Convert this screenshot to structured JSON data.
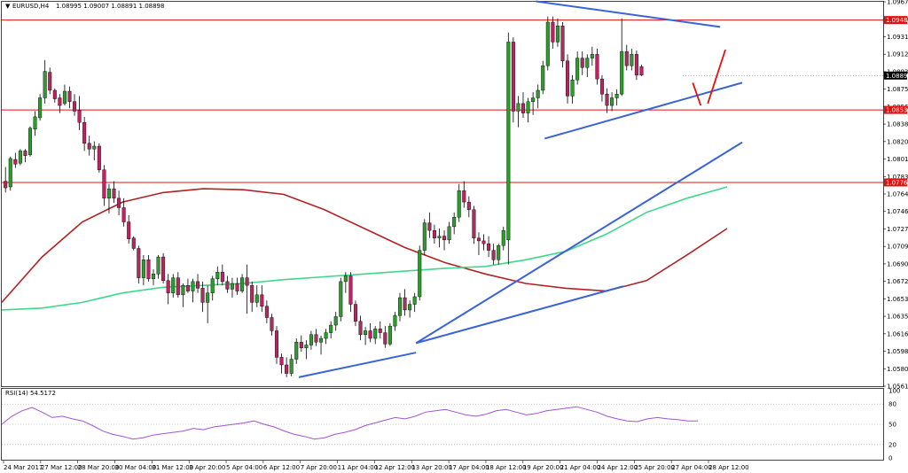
{
  "header": {
    "symbol": "EURUSD,H4",
    "ohlc": "1.08995 1.09007 1.08891 1.08898"
  },
  "rsi_header": "RSI(14) 54.5172",
  "colors": {
    "bull": "#2e9b2e",
    "bear": "#b8255f",
    "ma_red": "#b22222",
    "ma_green": "#3cd98a",
    "trend_blue": "#3a63d6",
    "level_red": "#e31010",
    "rsi_line": "#a352d6",
    "current_price_box": "#000000",
    "level_box": "#e31010"
  },
  "chart_data": [
    {
      "type": "candlestick",
      "panel": "price",
      "title": "EURUSD,H4",
      "ylim": [
        1.05615,
        1.09675
      ],
      "y_ticks": [
        "1.09675",
        "1.09500",
        "1.09310",
        "1.09120",
        "1.08935",
        "1.08750",
        "1.08565",
        "1.08380",
        "1.08200",
        "1.08015",
        "1.07830",
        "1.07645",
        "1.07460",
        "1.07275",
        "1.07090",
        "1.06905",
        "1.06720",
        "1.06535",
        "1.06350",
        "1.06165",
        "1.05985",
        "1.05800",
        "1.05615"
      ],
      "x_labels": [
        "24 Mar 2017",
        "27 Mar 12:00",
        "28 Mar 20:00",
        "30 Mar 04:00",
        "31 Mar 12:00",
        "3 Apr 20:00",
        "5 Apr 04:00",
        "6 Apr 12:00",
        "7 Apr 20:00",
        "11 Apr 04:00",
        "12 Apr 12:00",
        "13 Apr 20:00",
        "17 Apr 04:00",
        "18 Apr 12:00",
        "19 Apr 20:00",
        "21 Apr 04:00",
        "24 Apr 12:00",
        "25 Apr 20:00",
        "27 Apr 04:00",
        "28 Apr 12:00"
      ],
      "price_labels": {
        "current": "1.08896",
        "resistance": "1.09482",
        "support_1": "1.08533",
        "support_2": "1.07767"
      },
      "horizontal_levels": [
        1.09482,
        1.08533,
        1.07767
      ],
      "candles": [
        [
          1.0778,
          1.0793,
          1.0766,
          1.0771
        ],
        [
          1.0772,
          1.0804,
          1.0768,
          1.0802
        ],
        [
          1.0801,
          1.0808,
          1.0792,
          1.0796
        ],
        [
          1.0797,
          1.0812,
          1.0795,
          1.081
        ],
        [
          1.081,
          1.0812,
          1.0798,
          1.0805
        ],
        [
          1.0806,
          1.0836,
          1.0804,
          1.0834
        ],
        [
          1.0833,
          1.0852,
          1.0826,
          1.0846
        ],
        [
          1.0845,
          1.087,
          1.0842,
          1.0866
        ],
        [
          1.0866,
          1.0906,
          1.086,
          1.0894
        ],
        [
          1.0893,
          1.0898,
          1.087,
          1.0874
        ],
        [
          1.0874,
          1.0876,
          1.0861,
          1.0865
        ],
        [
          1.0866,
          1.087,
          1.085,
          1.0858
        ],
        [
          1.086,
          1.088,
          1.0858,
          1.0873
        ],
        [
          1.0873,
          1.0878,
          1.0855,
          1.0862
        ],
        [
          1.0862,
          1.087,
          1.0847,
          1.0852
        ],
        [
          1.0853,
          1.0868,
          1.0832,
          1.084
        ],
        [
          1.084,
          1.0846,
          1.081,
          1.0818
        ],
        [
          1.0818,
          1.0826,
          1.0805,
          1.0812
        ],
        [
          1.0812,
          1.082,
          1.08,
          1.0815
        ],
        [
          1.0815,
          1.0818,
          1.0787,
          1.079
        ],
        [
          1.079,
          1.0795,
          1.0752,
          1.076
        ],
        [
          1.076,
          1.0775,
          1.0744,
          1.077
        ],
        [
          1.077,
          1.0778,
          1.0755,
          1.076
        ],
        [
          1.076,
          1.0768,
          1.0742,
          1.075
        ],
        [
          1.075,
          1.076,
          1.073,
          1.0735
        ],
        [
          1.0735,
          1.0742,
          1.0712,
          1.0717
        ],
        [
          1.0718,
          1.072,
          1.0705,
          1.0707
        ],
        [
          1.0707,
          1.071,
          1.067,
          1.0676
        ],
        [
          1.0676,
          1.07,
          1.0668,
          1.0695
        ],
        [
          1.0695,
          1.07,
          1.0672,
          1.0675
        ],
        [
          1.0675,
          1.0685,
          1.0668,
          1.068
        ],
        [
          1.068,
          1.07,
          1.0675,
          1.0698
        ],
        [
          1.0698,
          1.0702,
          1.067,
          1.0673
        ],
        [
          1.0673,
          1.068,
          1.0648,
          1.066
        ],
        [
          1.066,
          1.068,
          1.0655,
          1.0676
        ],
        [
          1.0676,
          1.0682,
          1.0655,
          1.0658
        ],
        [
          1.0658,
          1.067,
          1.0645,
          1.0668
        ],
        [
          1.0668,
          1.0675,
          1.066,
          1.0662
        ],
        [
          1.0662,
          1.0675,
          1.065,
          1.0672
        ],
        [
          1.0672,
          1.068,
          1.066,
          1.0665
        ],
        [
          1.0665,
          1.0672,
          1.064,
          1.065
        ],
        [
          1.065,
          1.0668,
          1.0628,
          1.066
        ],
        [
          1.066,
          1.0678,
          1.0652,
          1.0675
        ],
        [
          1.0675,
          1.0688,
          1.0668,
          1.0682
        ],
        [
          1.0682,
          1.069,
          1.0668,
          1.0672
        ],
        [
          1.0672,
          1.0678,
          1.066,
          1.0664
        ],
        [
          1.0664,
          1.0676,
          1.0655,
          1.067
        ],
        [
          1.067,
          1.0676,
          1.0658,
          1.0662
        ],
        [
          1.0662,
          1.068,
          1.066,
          1.0676
        ],
        [
          1.0676,
          1.069,
          1.0638,
          1.0668
        ],
        [
          1.0668,
          1.0672,
          1.064,
          1.065
        ],
        [
          1.065,
          1.0668,
          1.0645,
          1.0658
        ],
        [
          1.0658,
          1.0668,
          1.064,
          1.0646
        ],
        [
          1.0646,
          1.0652,
          1.0628,
          1.0634
        ],
        [
          1.0634,
          1.0638,
          1.0615,
          1.062
        ],
        [
          1.062,
          1.0625,
          1.0585,
          1.0592
        ],
        [
          1.0592,
          1.0596,
          1.0575,
          1.0584
        ],
        [
          1.0584,
          1.0592,
          1.0571,
          1.0575
        ],
        [
          1.0575,
          1.0595,
          1.0572,
          1.059
        ],
        [
          1.059,
          1.0612,
          1.0585,
          1.0608
        ],
        [
          1.0608,
          1.0615,
          1.0598,
          1.0602
        ],
        [
          1.0602,
          1.061,
          1.059,
          1.0605
        ],
        [
          1.0605,
          1.062,
          1.06,
          1.0616
        ],
        [
          1.0616,
          1.0622,
          1.0604,
          1.0608
        ],
        [
          1.0608,
          1.0615,
          1.0595,
          1.0612
        ],
        [
          1.0612,
          1.0622,
          1.0606,
          1.0618
        ],
        [
          1.0618,
          1.063,
          1.0612,
          1.0626
        ],
        [
          1.0626,
          1.064,
          1.062,
          1.0635
        ],
        [
          1.0635,
          1.0676,
          1.063,
          1.0672
        ],
        [
          1.0672,
          1.0682,
          1.066,
          1.0678
        ],
        [
          1.0678,
          1.0682,
          1.064,
          1.0648
        ],
        [
          1.0648,
          1.0652,
          1.0625,
          1.063
        ],
        [
          1.063,
          1.0636,
          1.061,
          1.0616
        ],
        [
          1.0616,
          1.0624,
          1.0605,
          1.062
        ],
        [
          1.062,
          1.0628,
          1.0608,
          1.0612
        ],
        [
          1.0612,
          1.0625,
          1.0606,
          1.0622
        ],
        [
          1.0622,
          1.063,
          1.0612,
          1.0618
        ],
        [
          1.0618,
          1.0625,
          1.0602,
          1.0606
        ],
        [
          1.0606,
          1.0628,
          1.0604,
          1.0625
        ],
        [
          1.0625,
          1.064,
          1.062,
          1.0636
        ],
        [
          1.0636,
          1.066,
          1.063,
          1.0655
        ],
        [
          1.0655,
          1.0664,
          1.0636,
          1.0642
        ],
        [
          1.0642,
          1.0652,
          1.0634,
          1.0648
        ],
        [
          1.0648,
          1.066,
          1.064,
          1.0656
        ],
        [
          1.0656,
          1.071,
          1.0652,
          1.0705
        ],
        [
          1.0705,
          1.0738,
          1.07,
          1.0734
        ],
        [
          1.0734,
          1.0745,
          1.0718,
          1.0726
        ],
        [
          1.0726,
          1.0732,
          1.0712,
          1.0718
        ],
        [
          1.0718,
          1.0728,
          1.0708,
          1.072
        ],
        [
          1.072,
          1.0726,
          1.0705,
          1.0716
        ],
        [
          1.0716,
          1.0735,
          1.0712,
          1.073
        ],
        [
          1.073,
          1.0745,
          1.0722,
          1.074
        ],
        [
          1.074,
          1.0775,
          1.0735,
          1.0768
        ],
        [
          1.0768,
          1.0778,
          1.075,
          1.0756
        ],
        [
          1.0756,
          1.0762,
          1.074,
          1.0748
        ],
        [
          1.0748,
          1.0752,
          1.0712,
          1.0718
        ],
        [
          1.0718,
          1.0724,
          1.07,
          1.0715
        ],
        [
          1.0715,
          1.0722,
          1.0705,
          1.0712
        ],
        [
          1.0712,
          1.072,
          1.0698,
          1.0705
        ],
        [
          1.0705,
          1.0712,
          1.069,
          1.0695
        ],
        [
          1.0695,
          1.0712,
          1.069,
          1.071
        ],
        [
          1.071,
          1.073,
          1.0705,
          1.0726
        ],
        [
          1.0716,
          1.0935,
          1.069,
          1.0925
        ],
        [
          1.0925,
          1.093,
          1.084,
          1.0852
        ],
        [
          1.0852,
          1.0868,
          1.0835,
          1.086
        ],
        [
          1.086,
          1.0872,
          1.0845,
          1.085
        ],
        [
          1.085,
          1.0866,
          1.084,
          1.0862
        ],
        [
          1.0862,
          1.0872,
          1.0848,
          1.0866
        ],
        [
          1.0866,
          1.088,
          1.0855,
          1.0874
        ],
        [
          1.0874,
          1.0905,
          1.087,
          1.09
        ],
        [
          1.09,
          1.0952,
          1.0895,
          1.0946
        ],
        [
          1.0946,
          1.0952,
          1.0918,
          1.0925
        ],
        [
          1.0925,
          1.095,
          1.092,
          1.0942
        ],
        [
          1.0942,
          1.0946,
          1.0898,
          1.0905
        ],
        [
          1.0905,
          1.0912,
          1.086,
          1.0868
        ],
        [
          1.0868,
          1.089,
          1.086,
          1.0885
        ],
        [
          1.0885,
          1.0915,
          1.088,
          1.0908
        ],
        [
          1.0908,
          1.0915,
          1.089,
          1.0898
        ],
        [
          1.0898,
          1.0912,
          1.0888,
          1.0908
        ],
        [
          1.0908,
          1.092,
          1.09,
          1.0912
        ],
        [
          1.0912,
          1.0918,
          1.088,
          1.0886
        ],
        [
          1.0886,
          1.089,
          1.0862,
          1.087
        ],
        [
          1.087,
          1.0876,
          1.085,
          1.0858
        ],
        [
          1.0858,
          1.0872,
          1.0852,
          1.0866
        ],
        [
          1.0866,
          1.0875,
          1.0858,
          1.087
        ],
        [
          1.087,
          1.095,
          1.0868,
          1.0915
        ],
        [
          1.0915,
          1.0922,
          1.0895,
          1.09
        ],
        [
          1.09,
          1.0918,
          1.0895,
          1.0912
        ],
        [
          1.0912,
          1.0916,
          1.0885,
          1.089
        ],
        [
          1.0899,
          1.0901,
          1.0889,
          1.089
        ]
      ],
      "moving_averages": [
        {
          "color": "red",
          "values": [
            1.065,
            1.0698,
            1.0735,
            1.0756,
            1.0766,
            1.077,
            1.0769,
            1.0764,
            1.0748,
            1.0728,
            1.0708,
            1.0692,
            1.068,
            1.067,
            1.0665,
            1.0662,
            1.0673,
            1.07,
            1.0728
          ]
        },
        {
          "color": "green",
          "values": [
            1.0642,
            1.0644,
            1.065,
            1.066,
            1.0666,
            1.0668,
            1.067,
            1.0674,
            1.0677,
            1.068,
            1.0683,
            1.0686,
            1.0688,
            1.0695,
            1.0704,
            1.0722,
            1.0745,
            1.076,
            1.0772
          ]
        }
      ],
      "trend_lines": [
        {
          "from": [
            0.337,
            1.0571
          ],
          "to": [
            0.47,
            1.0597
          ]
        },
        {
          "from": [
            0.47,
            1.0607
          ],
          "to": [
            0.705,
            1.0667
          ]
        },
        {
          "from": [
            0.47,
            1.0607
          ],
          "to": [
            0.84,
            1.0819
          ]
        },
        {
          "from": [
            0.616,
            1.0823
          ],
          "to": [
            0.84,
            1.0882
          ]
        },
        {
          "from": [
            0.606,
            1.0968
          ],
          "to": [
            0.815,
            1.0941
          ]
        }
      ],
      "projection_lines": [
        {
          "from": [
            0.784,
            1.0882
          ],
          "to": [
            0.793,
            1.0858
          ]
        },
        {
          "from": [
            0.801,
            1.086
          ],
          "to": [
            0.821,
            1.0917
          ]
        }
      ]
    },
    {
      "type": "line",
      "panel": "indicator",
      "title": "RSI(14) 54.5172",
      "ylim": [
        0,
        100
      ],
      "y_ticks": [
        "100",
        "80",
        "50",
        "20",
        "0"
      ],
      "levels": [
        80,
        50,
        20
      ],
      "values": [
        50,
        62,
        70,
        75,
        68,
        60,
        62,
        58,
        55,
        48,
        40,
        35,
        32,
        28,
        30,
        34,
        36,
        38,
        40,
        44,
        42,
        46,
        48,
        50,
        52,
        55,
        50,
        46,
        40,
        35,
        32,
        28,
        30,
        35,
        38,
        42,
        48,
        52,
        56,
        60,
        58,
        62,
        68,
        70,
        72,
        68,
        64,
        62,
        65,
        70,
        72,
        68,
        64,
        66,
        70,
        72,
        74,
        76,
        72,
        68,
        62,
        58,
        55,
        54,
        58,
        60,
        58,
        57,
        55,
        55
      ]
    }
  ]
}
